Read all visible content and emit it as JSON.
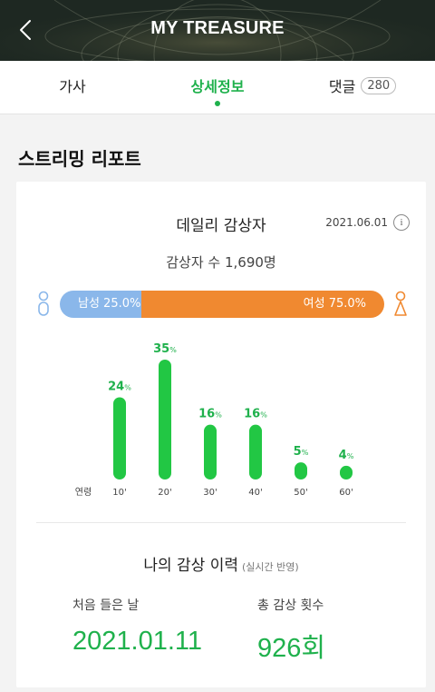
{
  "header": {
    "title": "MY TREASURE",
    "back_icon": "chevron-left-icon"
  },
  "tabs": [
    {
      "label": "가사",
      "active": false
    },
    {
      "label": "상세정보",
      "active": true
    },
    {
      "label": "댓글",
      "count": "280",
      "active": false
    }
  ],
  "streaming_report": {
    "section_title": "스트리밍 리포트",
    "daily": {
      "title": "데일리 감상자",
      "date": "2021.06.01",
      "info_icon": "info-icon",
      "listeners_text": "감상자 수 1,690명"
    },
    "gender": {
      "male_label": "남성 25.0%",
      "male_fraction": 0.25,
      "female_label": "여성 75.0%",
      "female_fraction": 0.75,
      "male_color": "#8ab7ea",
      "female_color": "#f08930"
    }
  },
  "chart_data": {
    "type": "bar",
    "xlabel": "연령",
    "categories": [
      "10'",
      "20'",
      "30'",
      "40'",
      "50'",
      "60'"
    ],
    "values": [
      24,
      35,
      16,
      16,
      5,
      4
    ],
    "unit": "%",
    "color": "#22c744",
    "label_color": "#1fb14c"
  },
  "history": {
    "title": "나의 감상 이력",
    "subtitle": "(실시간 반영)",
    "first_listen_label": "처음 들은 날",
    "first_listen_value": "2021.01.11",
    "total_plays_label": "총 감상 횟수",
    "total_plays_value": "926회"
  },
  "colors": {
    "accent": "#1fb14c",
    "header_bg": "#1f2a22"
  }
}
